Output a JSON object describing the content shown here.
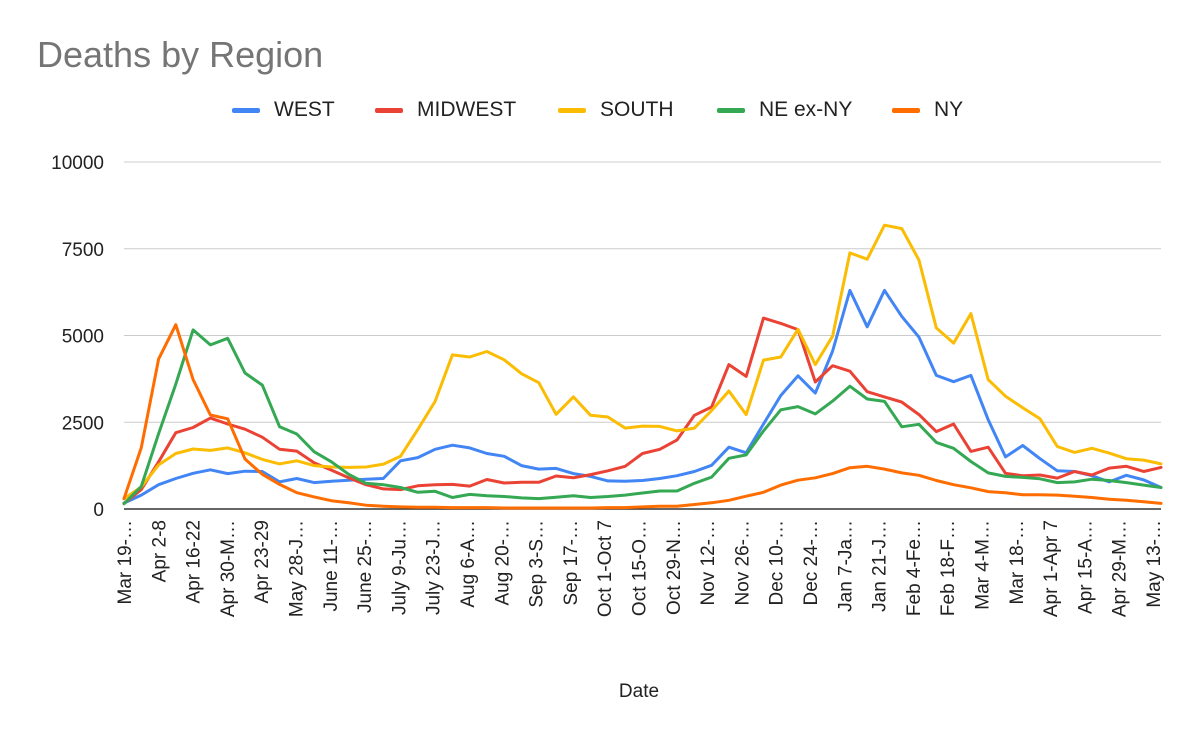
{
  "chart_data": {
    "type": "line",
    "title": "Deaths by Region",
    "xlabel": "Date",
    "ylabel": "",
    "ylim": [
      0,
      10000
    ],
    "yticks": [
      0,
      2500,
      5000,
      7500,
      10000
    ],
    "grid": true,
    "legend_position": "top",
    "x_tick_labels": [
      "Mar 19-…",
      "Apr 2-8",
      "Apr 16-22",
      "Apr 30-M…",
      "Apr 23-29",
      "May 28-J…",
      "June 11-…",
      "June 25-…",
      "July 9-Ju…",
      "July 23-J…",
      "Aug 6-A…",
      "Aug 20-…",
      "Sep 3-S…",
      "Sep 17-…",
      "Oct 1-Oct 7",
      "Oct 15-O…",
      "Oct 29-N…",
      "Nov 12-…",
      "Nov 26-…",
      "Dec 10-…",
      "Dec 24-…",
      "Jan 7-Ja…",
      "Jan 21-J…",
      "Feb 4-Fe…",
      "Feb 18-F…",
      "Mar 4-M…",
      "Mar 18-…",
      "Apr 1-Apr 7",
      "Apr 15-A…",
      "Apr 29-M…",
      "May 13-…"
    ],
    "series": [
      {
        "name": "WEST",
        "color": "#4285f4",
        "values": [
          170,
          400,
          700,
          880,
          1030,
          1130,
          1020,
          1090,
          1080,
          780,
          880,
          760,
          800,
          830,
          860,
          880,
          1390,
          1480,
          1720,
          1840,
          1760,
          1600,
          1520,
          1250,
          1150,
          1170,
          1020,
          940,
          810,
          800,
          820,
          880,
          960,
          1080,
          1260,
          1780,
          1620,
          2450,
          3270,
          3840,
          3340,
          4550,
          6300,
          5250,
          6300,
          5550,
          4950,
          3850,
          3670,
          3850,
          2570,
          1500,
          1830,
          1450,
          1100,
          1080,
          960,
          780,
          970,
          840,
          620
        ]
      },
      {
        "name": "MIDWEST",
        "color": "#ea4335",
        "values": [
          160,
          560,
          1360,
          2200,
          2350,
          2620,
          2450,
          2300,
          2070,
          1720,
          1670,
          1330,
          1120,
          900,
          700,
          580,
          560,
          670,
          700,
          710,
          660,
          850,
          750,
          770,
          770,
          950,
          900,
          990,
          1100,
          1230,
          1600,
          1720,
          1990,
          2700,
          2940,
          4160,
          3820,
          5500,
          5350,
          5170,
          3660,
          4130,
          3970,
          3380,
          3230,
          3080,
          2720,
          2230,
          2450,
          1660,
          1780,
          1030,
          960,
          980,
          890,
          1080,
          980,
          1180,
          1230,
          1080,
          1200
        ]
      },
      {
        "name": "SOUTH",
        "color": "#fbbc04",
        "values": [
          290,
          640,
          1270,
          1600,
          1730,
          1690,
          1760,
          1620,
          1430,
          1300,
          1390,
          1250,
          1210,
          1200,
          1210,
          1290,
          1520,
          2290,
          3100,
          4440,
          4380,
          4540,
          4300,
          3900,
          3640,
          2730,
          3230,
          2700,
          2650,
          2330,
          2390,
          2380,
          2250,
          2330,
          2840,
          3400,
          2720,
          4290,
          4380,
          5180,
          4160,
          4980,
          7380,
          7200,
          8180,
          8080,
          7170,
          5220,
          4780,
          5630,
          3730,
          3250,
          2920,
          2600,
          1800,
          1630,
          1750,
          1610,
          1450,
          1410,
          1300
        ]
      },
      {
        "name": "NE ex-NY",
        "color": "#34a853",
        "values": [
          150,
          650,
          2170,
          3600,
          5160,
          4730,
          4920,
          3920,
          3570,
          2370,
          2160,
          1650,
          1360,
          1000,
          740,
          700,
          620,
          480,
          510,
          330,
          420,
          380,
          360,
          320,
          300,
          340,
          380,
          330,
          360,
          400,
          460,
          520,
          520,
          740,
          920,
          1460,
          1560,
          2250,
          2860,
          2950,
          2740,
          3110,
          3540,
          3170,
          3100,
          2370,
          2440,
          1920,
          1750,
          1370,
          1040,
          940,
          910,
          870,
          760,
          780,
          860,
          820,
          760,
          690,
          620
        ]
      },
      {
        "name": "NY",
        "color": "#ff6d01",
        "values": [
          300,
          1770,
          4320,
          5310,
          3730,
          2710,
          2600,
          1440,
          1000,
          710,
          470,
          350,
          240,
          180,
          110,
          80,
          60,
          50,
          50,
          40,
          40,
          40,
          30,
          30,
          30,
          30,
          30,
          30,
          40,
          40,
          60,
          80,
          80,
          130,
          180,
          250,
          370,
          480,
          690,
          830,
          900,
          1020,
          1190,
          1230,
          1150,
          1040,
          970,
          820,
          700,
          610,
          500,
          470,
          410,
          410,
          400,
          370,
          330,
          280,
          250,
          210,
          160
        ]
      }
    ]
  }
}
